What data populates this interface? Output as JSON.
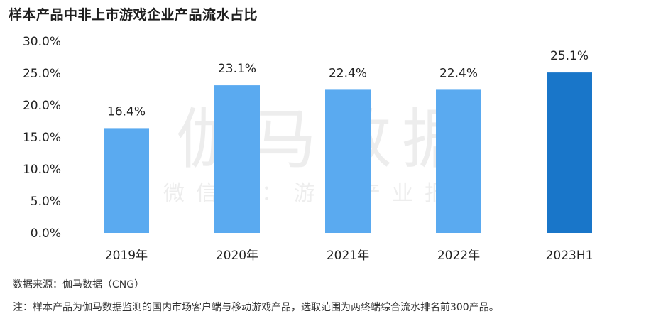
{
  "header": {
    "title": "样本产品中非上市游戏企业产品流水占比"
  },
  "watermark": {
    "main": "伽马数据",
    "sub": "微信号：游戏产业报告"
  },
  "footer": {
    "source": "数据来源：伽马数据（CNG）",
    "note": "注：样本产品为伽马数据监测的国内市场客户端与移动游戏产品，选取范围为两终端综合流水排名前300产品。"
  },
  "colors": {
    "bar": "#5aaaf0",
    "bar_highlight": "#1976c9",
    "text": "#222222"
  },
  "chart_data": {
    "type": "bar",
    "title": "样本产品中非上市游戏企业产品流水占比",
    "categories": [
      "2019年",
      "2020年",
      "2021年",
      "2022年",
      "2023H1"
    ],
    "values": [
      16.4,
      23.1,
      22.4,
      22.4,
      25.1
    ],
    "data_labels": [
      "16.4%",
      "23.1%",
      "22.4%",
      "22.4%",
      "25.1%"
    ],
    "highlight_index": 4,
    "ylim": [
      0,
      30
    ],
    "yticks": [
      0,
      5,
      10,
      15,
      20,
      25,
      30
    ],
    "ytick_labels": [
      "0.0%",
      "5.0%",
      "10.0%",
      "15.0%",
      "20.0%",
      "25.0%",
      "30.0%"
    ],
    "xlabel": "",
    "ylabel": "",
    "grid": false,
    "legend": "none"
  }
}
